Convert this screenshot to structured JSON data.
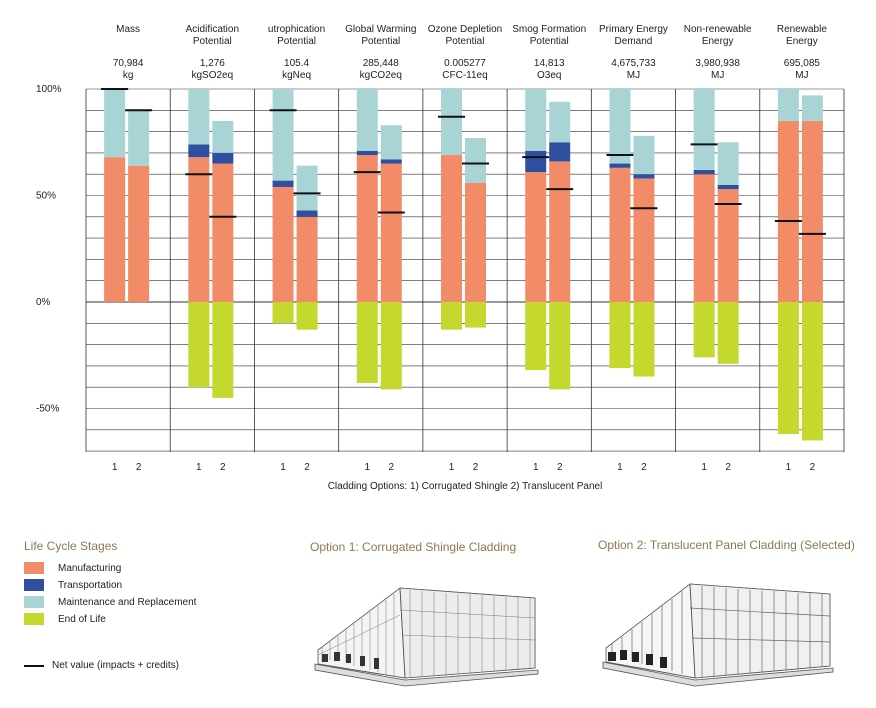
{
  "chart_data": {
    "type": "bar",
    "stacked": true,
    "categories": [
      {
        "name": [
          "Mass"
        ],
        "total": "70,984",
        "unit": "kg"
      },
      {
        "name": [
          "Acidification",
          "Potential"
        ],
        "total": "1,276",
        "unit": "kgSO2eq"
      },
      {
        "name": [
          "utrophication",
          "Potential"
        ],
        "total": "105.4",
        "unit": "kgNeq"
      },
      {
        "name": [
          "Global Warming",
          "Potential"
        ],
        "total": "285,448",
        "unit": "kgCO2eq"
      },
      {
        "name": [
          "Ozone Depletion",
          "Potential"
        ],
        "total": "0.005277",
        "unit": "CFC-11eq"
      },
      {
        "name": [
          "Smog Formation",
          "Potential"
        ],
        "total": "14,813",
        "unit": "O3eq"
      },
      {
        "name": [
          "Primary Energy",
          "Demand"
        ],
        "total": "4,675,733",
        "unit": "MJ"
      },
      {
        "name": [
          "Non-renewable",
          "Energy"
        ],
        "total": "3,980,938",
        "unit": "MJ"
      },
      {
        "name": [
          "Renewable",
          "Energy"
        ],
        "total": "695,085",
        "unit": "MJ"
      }
    ],
    "option_labels": [
      "1",
      "2"
    ],
    "series_names": [
      "Manufacturing",
      "Transportation",
      "Maintenance and Replacement",
      "End of Life"
    ],
    "colors": {
      "Manufacturing": "#f28b68",
      "Transportation": "#2f4fa0",
      "Maintenance and Replacement": "#a8d4d6",
      "End of Life": "#c4d82e"
    },
    "bars": [
      [
        {
          "manufacturing": 68,
          "transportation": 0,
          "maintenance": 32,
          "end_of_life": 0,
          "net": 100
        },
        {
          "manufacturing": 64,
          "transportation": 0,
          "maintenance": 26,
          "end_of_life": 0,
          "net": 90
        }
      ],
      [
        {
          "manufacturing": 68,
          "transportation": 6,
          "maintenance": 26,
          "end_of_life": -40,
          "net": 60
        },
        {
          "manufacturing": 65,
          "transportation": 5,
          "maintenance": 15,
          "end_of_life": -45,
          "net": 40
        }
      ],
      [
        {
          "manufacturing": 54,
          "transportation": 3,
          "maintenance": 43,
          "end_of_life": -10,
          "net": 90
        },
        {
          "manufacturing": 40,
          "transportation": 3,
          "maintenance": 21,
          "end_of_life": -13,
          "net": 51
        }
      ],
      [
        {
          "manufacturing": 69,
          "transportation": 2,
          "maintenance": 29,
          "end_of_life": -38,
          "net": 61
        },
        {
          "manufacturing": 65,
          "transportation": 2,
          "maintenance": 16,
          "end_of_life": -41,
          "net": 42
        }
      ],
      [
        {
          "manufacturing": 69,
          "transportation": 0,
          "maintenance": 31,
          "end_of_life": -13,
          "net": 87
        },
        {
          "manufacturing": 56,
          "transportation": 0,
          "maintenance": 21,
          "end_of_life": -12,
          "net": 65
        }
      ],
      [
        {
          "manufacturing": 61,
          "transportation": 10,
          "maintenance": 29,
          "end_of_life": -32,
          "net": 68
        },
        {
          "manufacturing": 66,
          "transportation": 9,
          "maintenance": 19,
          "end_of_life": -41,
          "net": 53
        }
      ],
      [
        {
          "manufacturing": 63,
          "transportation": 2,
          "maintenance": 35,
          "end_of_life": -31,
          "net": 69
        },
        {
          "manufacturing": 58,
          "transportation": 2,
          "maintenance": 18,
          "end_of_life": -35,
          "net": 44
        }
      ],
      [
        {
          "manufacturing": 60,
          "transportation": 2,
          "maintenance": 38,
          "end_of_life": -26,
          "net": 74
        },
        {
          "manufacturing": 53,
          "transportation": 2,
          "maintenance": 20,
          "end_of_life": -29,
          "net": 46
        }
      ],
      [
        {
          "manufacturing": 85,
          "transportation": 0,
          "maintenance": 15,
          "end_of_life": -62,
          "net": 38
        },
        {
          "manufacturing": 85,
          "transportation": 0,
          "maintenance": 12,
          "end_of_life": -65,
          "net": 32
        }
      ]
    ],
    "yticks": [
      {
        "v": 100,
        "label": "100%"
      },
      {
        "v": 50,
        "label": "50%"
      },
      {
        "v": 0,
        "label": "0%"
      },
      {
        "v": -50,
        "label": "-50%"
      }
    ],
    "ylim": [
      -70,
      100
    ],
    "grid": true,
    "xlabel": "Cladding Options: 1) Corrugated Shingle 2) Translucent Panel"
  },
  "legend": {
    "title": "Life Cycle Stages",
    "items": [
      {
        "label": "Manufacturing",
        "color": "#f28b68"
      },
      {
        "label": "Transportation",
        "color": "#2f4fa0"
      },
      {
        "label": "Maintenance and Replacement",
        "color": "#a8d4d6"
      },
      {
        "label": "End of Life",
        "color": "#c4d82e"
      }
    ],
    "net_label": "Net value (impacts + credits)"
  },
  "options": {
    "option1_title": "Option 1: Corrugated Shingle Cladding",
    "option2_title": "Option 2: Translucent Panel Cladding (Selected)"
  }
}
